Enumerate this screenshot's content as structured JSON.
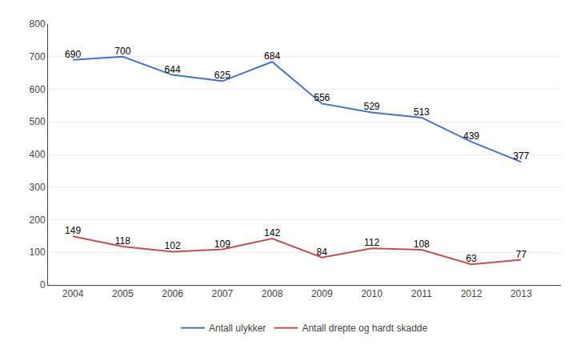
{
  "chart_data": {
    "type": "line",
    "x": [
      2004,
      2005,
      2006,
      2007,
      2008,
      2009,
      2010,
      2011,
      2012,
      2013
    ],
    "series": [
      {
        "name": "Antall ulykker",
        "color": "#4472C4",
        "values": [
          690,
          700,
          644,
          625,
          684,
          556,
          529,
          513,
          439,
          377
        ]
      },
      {
        "name": "Antall drepte og hardt skadde",
        "color": "#C0504D",
        "values": [
          149,
          118,
          102,
          109,
          142,
          84,
          112,
          108,
          63,
          77
        ]
      }
    ],
    "xlim": [
      2003.5,
      2013.8
    ],
    "xticks": [
      2004,
      2005,
      2006,
      2007,
      2008,
      2009,
      2010,
      2011,
      2012,
      2013
    ],
    "ylim": [
      0,
      800
    ],
    "yticks": [
      0,
      100,
      200,
      300,
      400,
      500,
      600,
      700,
      800
    ],
    "grid": true,
    "legend": "bottom",
    "data_labels": true
  }
}
